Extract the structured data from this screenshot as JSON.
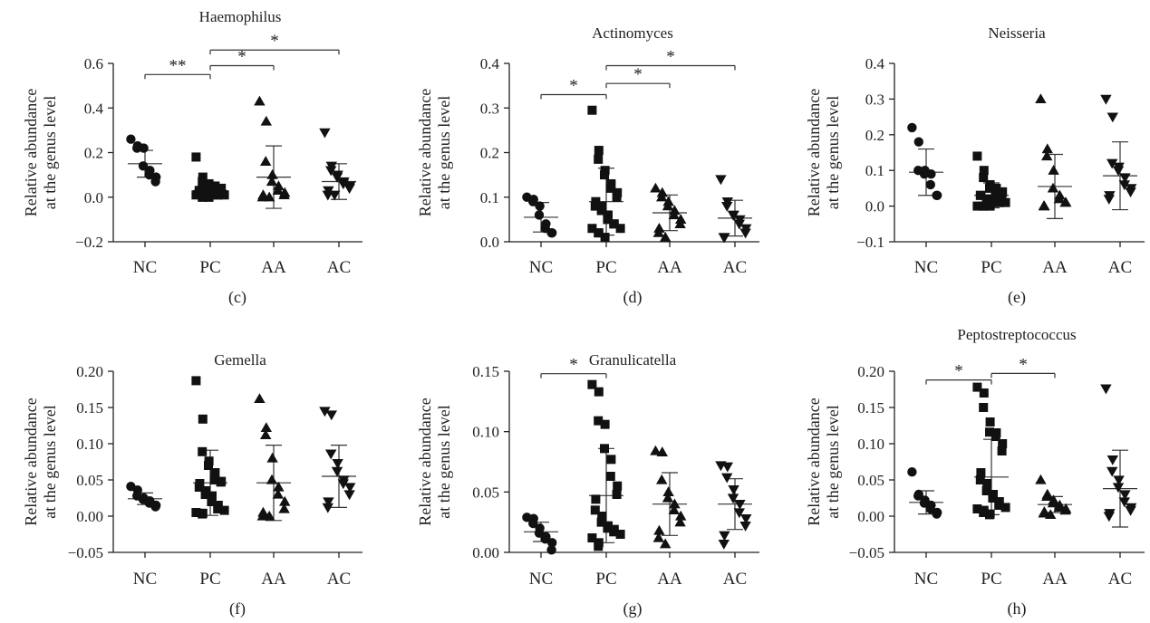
{
  "figure": {
    "categories": [
      "NC",
      "PC",
      "AA",
      "AC"
    ],
    "ylabel_line1": "Relative abundance",
    "ylabel_line2": "at the genus level"
  },
  "chart_data": [
    {
      "type": "scatter",
      "panel": "(c)",
      "title": "Haemophilus",
      "ylabel": "Relative abundance at the genus level",
      "ylim": [
        -0.2,
        0.6
      ],
      "yticks": [
        "−0.2",
        "0.0",
        "0.2",
        "0.4",
        "0.6"
      ],
      "ytick_values": [
        -0.2,
        0.0,
        0.2,
        0.4,
        0.6
      ],
      "categories": [
        "NC",
        "PC",
        "AA",
        "AC"
      ],
      "series": [
        {
          "category": "NC",
          "marker": "circle",
          "mean": 0.15,
          "sd": 0.06,
          "values": [
            0.26,
            0.23,
            0.22,
            0.22,
            0.14,
            0.12,
            0.1,
            0.09,
            0.07
          ]
        },
        {
          "category": "PC",
          "marker": "square",
          "mean": 0.03,
          "sd": 0.035,
          "values": [
            0.18,
            0.09,
            0.07,
            0.06,
            0.05,
            0.05,
            0.04,
            0.04,
            0.03,
            0.03,
            0.03,
            0.02,
            0.02,
            0.02,
            0.02,
            0.01,
            0.01,
            0.01,
            0.01,
            0.0,
            0.0,
            0.0,
            0.0
          ]
        },
        {
          "category": "AA",
          "marker": "triangle-up",
          "mean": 0.09,
          "sd": 0.14,
          "values": [
            0.43,
            0.34,
            0.16,
            0.1,
            0.07,
            0.05,
            0.03,
            0.02,
            0.01,
            0.01,
            0.0,
            0.0
          ]
        },
        {
          "category": "AC",
          "marker": "triangle-down",
          "mean": 0.07,
          "sd": 0.08,
          "values": [
            0.29,
            0.14,
            0.12,
            0.1,
            0.09,
            0.07,
            0.06,
            0.05,
            0.04,
            0.03,
            0.01,
            0.01
          ]
        }
      ],
      "significance": [
        {
          "from": "NC",
          "to": "PC",
          "y": 0.55,
          "label": "**"
        },
        {
          "from": "PC",
          "to": "AA",
          "y": 0.59,
          "label": "*"
        },
        {
          "from": "PC",
          "to": "AC",
          "y": 0.66,
          "label": "*"
        }
      ]
    },
    {
      "type": "scatter",
      "panel": "(d)",
      "title": "Actinomyces",
      "ylabel": "Relative abundance at the genus level",
      "ylim": [
        0.0,
        0.4
      ],
      "yticks": [
        "0.0",
        "0.1",
        "0.2",
        "0.3",
        "0.4"
      ],
      "ytick_values": [
        0.0,
        0.1,
        0.2,
        0.3,
        0.4
      ],
      "categories": [
        "NC",
        "PC",
        "AA",
        "AC"
      ],
      "series": [
        {
          "category": "NC",
          "marker": "circle",
          "mean": 0.055,
          "sd": 0.033,
          "values": [
            0.1,
            0.095,
            0.09,
            0.08,
            0.06,
            0.04,
            0.03,
            0.02,
            0.02
          ]
        },
        {
          "category": "PC",
          "marker": "square",
          "mean": 0.09,
          "sd": 0.075,
          "values": [
            0.295,
            0.205,
            0.185,
            0.16,
            0.15,
            0.13,
            0.12,
            0.11,
            0.1,
            0.09,
            0.08,
            0.08,
            0.07,
            0.06,
            0.05,
            0.04,
            0.04,
            0.03,
            0.03,
            0.02,
            0.02,
            0.01
          ]
        },
        {
          "category": "AA",
          "marker": "triangle-up",
          "mean": 0.065,
          "sd": 0.04,
          "values": [
            0.12,
            0.11,
            0.1,
            0.09,
            0.08,
            0.07,
            0.06,
            0.05,
            0.04,
            0.03,
            0.02,
            0.01
          ]
        },
        {
          "category": "AC",
          "marker": "triangle-down",
          "mean": 0.053,
          "sd": 0.04,
          "values": [
            0.14,
            0.09,
            0.08,
            0.06,
            0.06,
            0.05,
            0.04,
            0.03,
            0.02,
            0.01,
            0.01
          ]
        }
      ],
      "significance": [
        {
          "from": "NC",
          "to": "PC",
          "y": 0.33,
          "label": "*"
        },
        {
          "from": "PC",
          "to": "AA",
          "y": 0.355,
          "label": "*"
        },
        {
          "from": "PC",
          "to": "AC",
          "y": 0.395,
          "label": "*"
        }
      ]
    },
    {
      "type": "scatter",
      "panel": "(e)",
      "title": "Neisseria",
      "ylabel": "Relative abundance at the genus level",
      "ylim": [
        -0.1,
        0.4
      ],
      "yticks": [
        "−0.1",
        "0.0",
        "0.1",
        "0.2",
        "0.3",
        "0.4"
      ],
      "ytick_values": [
        -0.1,
        0.0,
        0.1,
        0.2,
        0.3,
        0.4
      ],
      "categories": [
        "NC",
        "PC",
        "AA",
        "AC"
      ],
      "series": [
        {
          "category": "NC",
          "marker": "circle",
          "mean": 0.095,
          "sd": 0.065,
          "values": [
            0.22,
            0.18,
            0.1,
            0.1,
            0.09,
            0.09,
            0.06,
            0.03,
            0.03
          ]
        },
        {
          "category": "PC",
          "marker": "square",
          "mean": 0.03,
          "sd": 0.035,
          "values": [
            0.14,
            0.1,
            0.08,
            0.06,
            0.05,
            0.05,
            0.04,
            0.04,
            0.03,
            0.03,
            0.03,
            0.02,
            0.02,
            0.02,
            0.01,
            0.01,
            0.01,
            0.01,
            0.0,
            0.0,
            0.0,
            0.0
          ]
        },
        {
          "category": "AA",
          "marker": "triangle-up",
          "mean": 0.055,
          "sd": 0.09,
          "values": [
            0.3,
            0.16,
            0.14,
            0.1,
            0.05,
            0.03,
            0.02,
            0.01,
            0.01,
            0.0,
            0.0
          ]
        },
        {
          "category": "AC",
          "marker": "triangle-down",
          "mean": 0.085,
          "sd": 0.095,
          "values": [
            0.3,
            0.25,
            0.12,
            0.11,
            0.1,
            0.08,
            0.06,
            0.05,
            0.04,
            0.03,
            0.02
          ]
        }
      ],
      "significance": []
    },
    {
      "type": "scatter",
      "panel": "(f)",
      "title": "Gemella",
      "ylabel": "Relative abundance at the genus level",
      "ylim": [
        -0.05,
        0.2
      ],
      "yticks": [
        "−0.05",
        "0.00",
        "0.05",
        "0.10",
        "0.15",
        "0.20"
      ],
      "ytick_values": [
        -0.05,
        0.0,
        0.05,
        0.1,
        0.15,
        0.2
      ],
      "categories": [
        "NC",
        "PC",
        "AA",
        "AC"
      ],
      "series": [
        {
          "category": "NC",
          "marker": "circle",
          "mean": 0.024,
          "sd": 0.008,
          "values": [
            0.041,
            0.036,
            0.028,
            0.025,
            0.023,
            0.021,
            0.018,
            0.015,
            0.013
          ]
        },
        {
          "category": "PC",
          "marker": "square",
          "mean": 0.046,
          "sd": 0.045,
          "values": [
            0.187,
            0.134,
            0.089,
            0.076,
            0.07,
            0.06,
            0.05,
            0.048,
            0.047,
            0.045,
            0.04,
            0.035,
            0.03,
            0.028,
            0.02,
            0.015,
            0.01,
            0.008,
            0.005,
            0.004,
            0.003
          ]
        },
        {
          "category": "AA",
          "marker": "triangle-up",
          "mean": 0.046,
          "sd": 0.052,
          "values": [
            0.162,
            0.122,
            0.112,
            0.08,
            0.05,
            0.04,
            0.03,
            0.02,
            0.01,
            0.005,
            0.0,
            0.0
          ]
        },
        {
          "category": "AC",
          "marker": "triangle-down",
          "mean": 0.055,
          "sd": 0.043,
          "values": [
            0.145,
            0.14,
            0.086,
            0.073,
            0.062,
            0.05,
            0.045,
            0.04,
            0.03,
            0.02,
            0.012
          ]
        }
      ],
      "significance": []
    },
    {
      "type": "scatter",
      "panel": "(g)",
      "title": "Granulicatella",
      "ylabel": "Relative abundance at the genus level",
      "ylim": [
        0.0,
        0.15
      ],
      "yticks": [
        "0.00",
        "0.05",
        "0.10",
        "0.15"
      ],
      "ytick_values": [
        0.0,
        0.05,
        0.1,
        0.15
      ],
      "categories": [
        "NC",
        "PC",
        "AA",
        "AC"
      ],
      "series": [
        {
          "category": "NC",
          "marker": "circle",
          "mean": 0.017,
          "sd": 0.008,
          "values": [
            0.029,
            0.028,
            0.024,
            0.02,
            0.016,
            0.013,
            0.011,
            0.008,
            0.002
          ]
        },
        {
          "category": "PC",
          "marker": "square",
          "mean": 0.047,
          "sd": 0.039,
          "values": [
            0.139,
            0.133,
            0.109,
            0.106,
            0.086,
            0.077,
            0.063,
            0.055,
            0.048,
            0.044,
            0.035,
            0.03,
            0.025,
            0.022,
            0.02,
            0.019,
            0.017,
            0.015,
            0.012,
            0.008,
            0.005
          ]
        },
        {
          "category": "AA",
          "marker": "triangle-up",
          "mean": 0.04,
          "sd": 0.026,
          "values": [
            0.084,
            0.083,
            0.06,
            0.05,
            0.045,
            0.04,
            0.035,
            0.03,
            0.025,
            0.018,
            0.012,
            0.007
          ]
        },
        {
          "category": "AC",
          "marker": "triangle-down",
          "mean": 0.04,
          "sd": 0.021,
          "values": [
            0.072,
            0.071,
            0.062,
            0.052,
            0.045,
            0.04,
            0.033,
            0.028,
            0.022,
            0.014,
            0.007
          ]
        }
      ],
      "significance": [
        {
          "from": "NC",
          "to": "PC",
          "y": 0.148,
          "label": "*"
        }
      ]
    },
    {
      "type": "scatter",
      "panel": "(h)",
      "title": "Peptostreptococcus",
      "ylabel": "Relative abundance at the genus level",
      "ylim": [
        -0.05,
        0.2
      ],
      "yticks": [
        "−0.05",
        "0.00",
        "0.05",
        "0.10",
        "0.15",
        "0.20"
      ],
      "ytick_values": [
        -0.05,
        0.0,
        0.05,
        0.1,
        0.15,
        0.2
      ],
      "categories": [
        "NC",
        "PC",
        "AA",
        "AC"
      ],
      "series": [
        {
          "category": "NC",
          "marker": "circle",
          "mean": 0.019,
          "sd": 0.016,
          "values": [
            0.061,
            0.03,
            0.028,
            0.022,
            0.018,
            0.015,
            0.01,
            0.005,
            0.003
          ]
        },
        {
          "category": "PC",
          "marker": "square",
          "mean": 0.054,
          "sd": 0.052,
          "values": [
            0.178,
            0.17,
            0.15,
            0.13,
            0.116,
            0.115,
            0.11,
            0.1,
            0.09,
            0.06,
            0.05,
            0.045,
            0.035,
            0.03,
            0.025,
            0.02,
            0.015,
            0.012,
            0.01,
            0.008,
            0.005,
            0.003,
            0.002
          ]
        },
        {
          "category": "AA",
          "marker": "triangle-up",
          "mean": 0.016,
          "sd": 0.011,
          "values": [
            0.05,
            0.03,
            0.027,
            0.022,
            0.018,
            0.015,
            0.012,
            0.01,
            0.008,
            0.006,
            0.004,
            0.002
          ]
        },
        {
          "category": "AC",
          "marker": "triangle-down",
          "mean": 0.038,
          "sd": 0.053,
          "values": [
            0.176,
            0.078,
            0.062,
            0.05,
            0.04,
            0.03,
            0.02,
            0.012,
            0.008,
            0.004,
            0.0
          ]
        }
      ],
      "significance": [
        {
          "from": "NC",
          "to": "PC",
          "y": 0.188,
          "label": "*"
        },
        {
          "from": "PC",
          "to": "AA",
          "y": 0.197,
          "label": "*"
        }
      ]
    }
  ]
}
